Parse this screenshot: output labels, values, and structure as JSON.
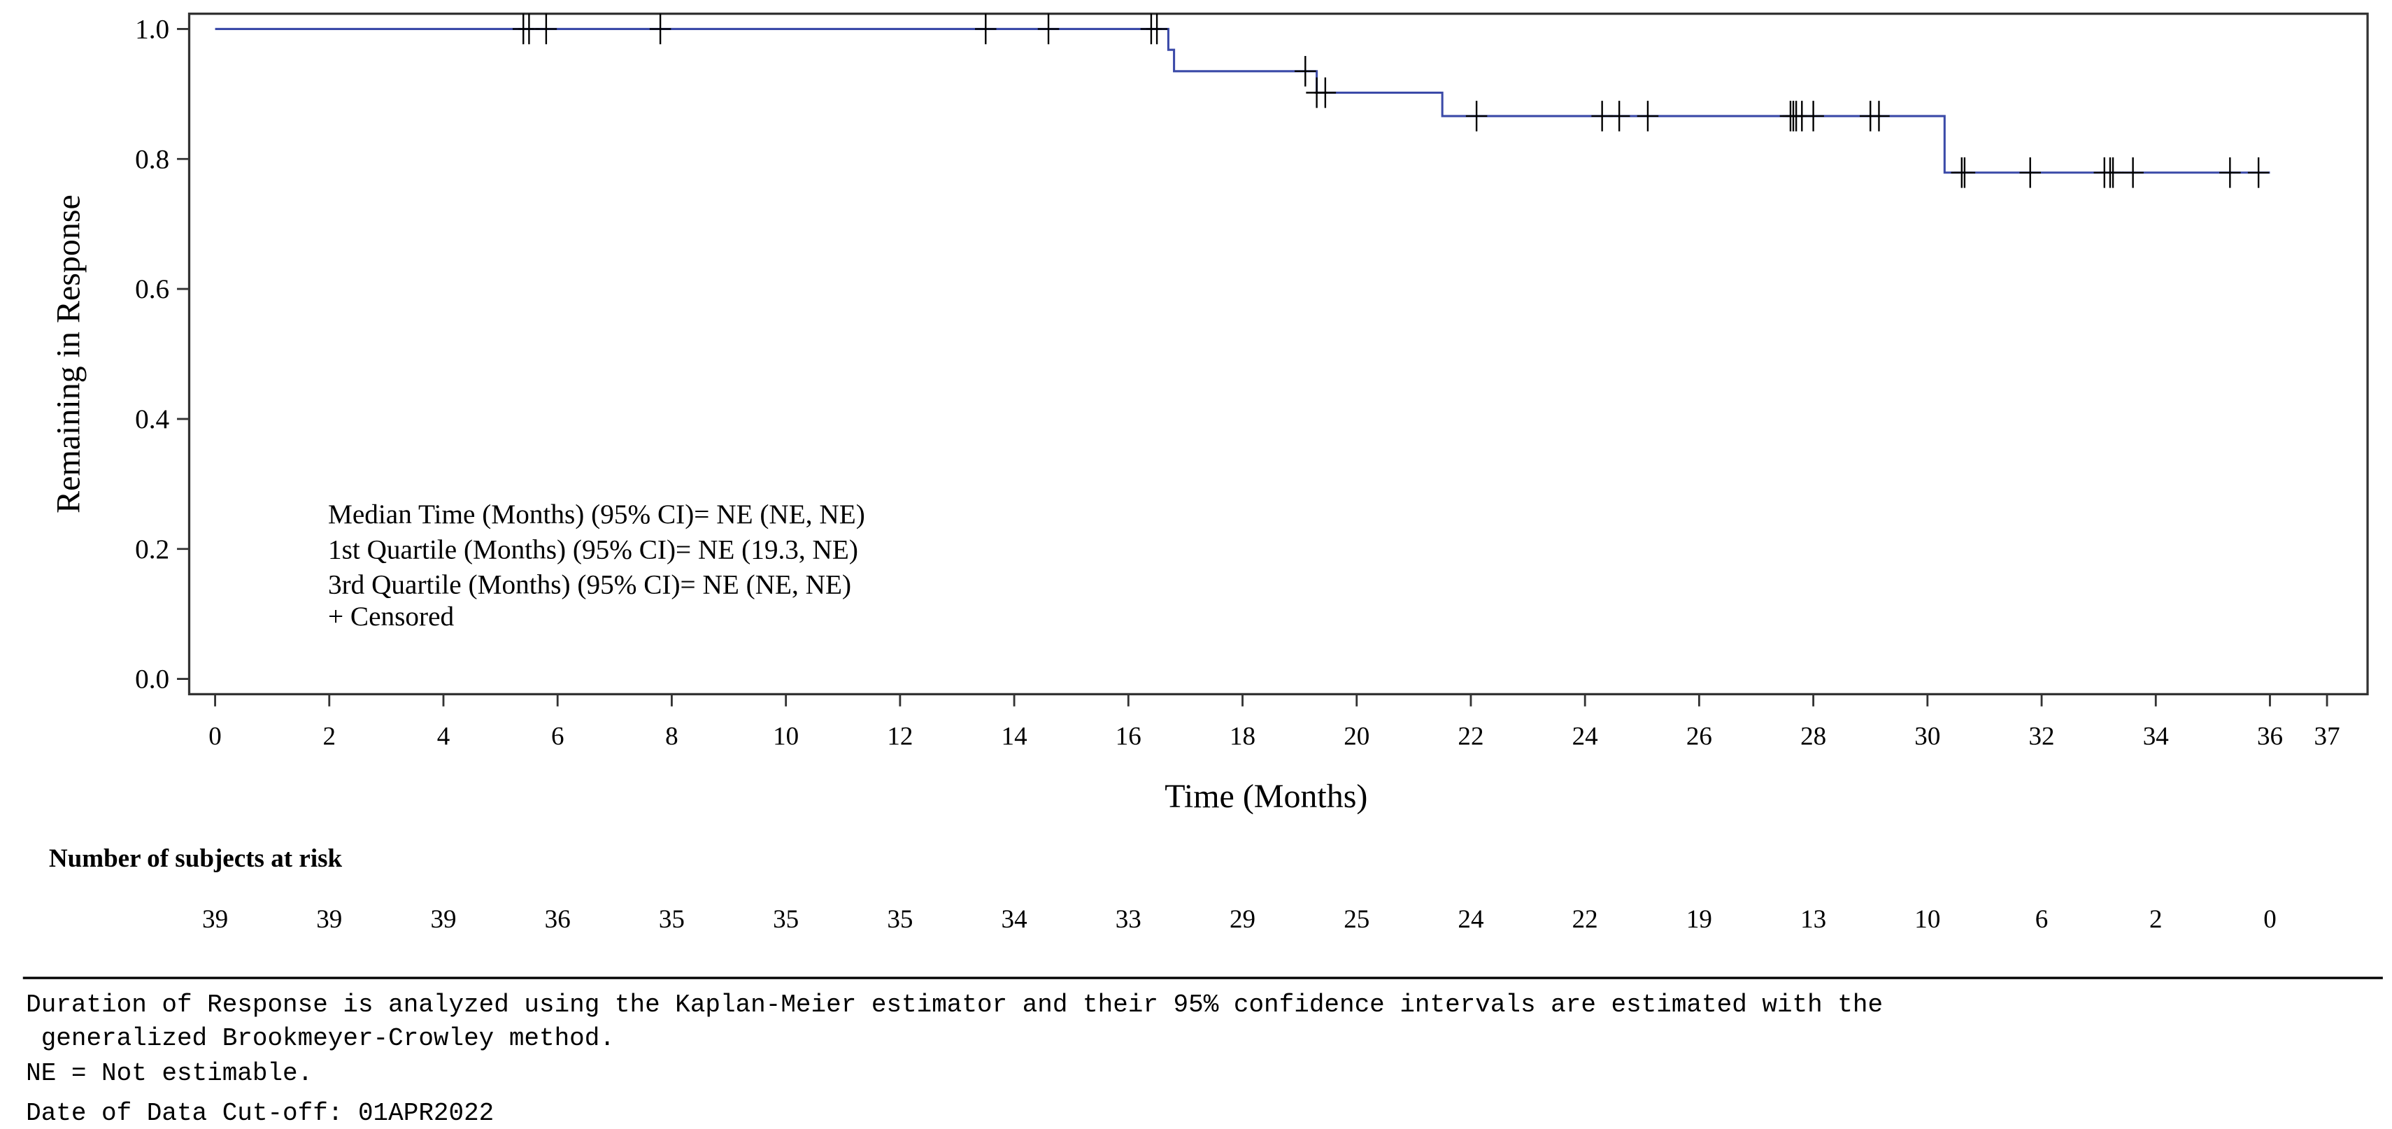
{
  "chart_data": {
    "type": "line",
    "subtype": "kaplan-meier step",
    "xlabel": "Time (Months)",
    "ylabel": "Remaining in Response",
    "xlim": [
      0,
      37
    ],
    "ylim": [
      0,
      1.0
    ],
    "x_ticks": [
      0,
      2,
      4,
      6,
      8,
      10,
      12,
      14,
      16,
      18,
      20,
      22,
      24,
      26,
      28,
      30,
      32,
      34,
      36,
      37
    ],
    "y_ticks": [
      "0.0",
      "0.2",
      "0.4",
      "0.6",
      "0.8",
      "1.0"
    ],
    "grid": false,
    "line_color": "#3b4aa8",
    "censor_color": "#000000",
    "steps": [
      [
        0,
        1.0
      ],
      [
        16.6,
        1.0
      ],
      [
        16.7,
        0.968
      ],
      [
        16.8,
        0.935
      ],
      [
        19.3,
        0.902
      ],
      [
        21.5,
        0.866
      ],
      [
        30.3,
        0.779
      ],
      [
        36.0,
        0.779
      ]
    ],
    "censored": [
      [
        5.4,
        1.0
      ],
      [
        5.5,
        1.0
      ],
      [
        5.8,
        1.0
      ],
      [
        7.8,
        1.0
      ],
      [
        13.5,
        1.0
      ],
      [
        14.6,
        1.0
      ],
      [
        16.4,
        1.0
      ],
      [
        16.5,
        1.0
      ],
      [
        19.1,
        0.935
      ],
      [
        19.3,
        0.902
      ],
      [
        19.45,
        0.902
      ],
      [
        22.1,
        0.866
      ],
      [
        24.3,
        0.866
      ],
      [
        24.6,
        0.866
      ],
      [
        25.1,
        0.866
      ],
      [
        27.6,
        0.866
      ],
      [
        27.65,
        0.866
      ],
      [
        27.7,
        0.866
      ],
      [
        27.8,
        0.866
      ],
      [
        28.0,
        0.866
      ],
      [
        29.0,
        0.866
      ],
      [
        29.15,
        0.866
      ],
      [
        30.6,
        0.779
      ],
      [
        30.65,
        0.779
      ],
      [
        31.8,
        0.779
      ],
      [
        33.1,
        0.779
      ],
      [
        33.2,
        0.779
      ],
      [
        33.25,
        0.779
      ],
      [
        33.6,
        0.779
      ],
      [
        35.3,
        0.779
      ],
      [
        35.8,
        0.779
      ]
    ],
    "legend_lines": [
      "Median Time (Months) (95% CI)= NE (NE, NE)",
      "1st Quartile (Months) (95% CI)= NE (19.3, NE)",
      "3rd Quartile (Months) (95% CI)= NE (NE, NE)",
      "+ Censored"
    ],
    "risk_table": {
      "title": "Number of subjects at risk",
      "times": [
        0,
        2,
        4,
        6,
        8,
        10,
        12,
        14,
        16,
        18,
        20,
        22,
        24,
        26,
        28,
        30,
        32,
        34,
        36
      ],
      "values": [
        "39",
        "39",
        "39",
        "36",
        "35",
        "35",
        "35",
        "34",
        "33",
        "29",
        "25",
        "24",
        "22",
        "19",
        "13",
        "10",
        "6",
        "2",
        "0"
      ]
    }
  },
  "footnotes": [
    "Duration of Response is analyzed using the Kaplan-Meier estimator and their 95% confidence intervals are estimated with the",
    " generalized Brookmeyer-Crowley method.",
    "NE = Not estimable.",
    "Date of Data Cut-off: 01APR2022"
  ]
}
